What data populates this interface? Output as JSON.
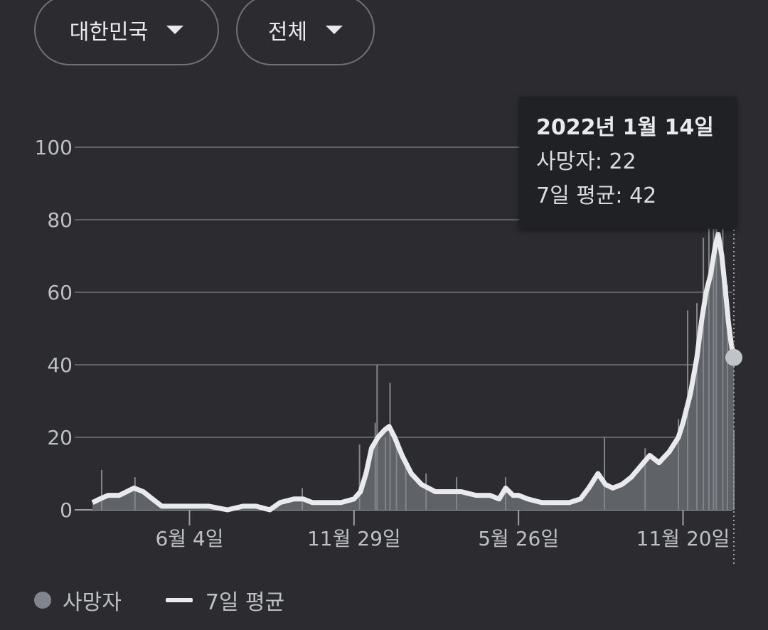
{
  "filters": {
    "region": "대한민국",
    "scope": "전체"
  },
  "tooltip": {
    "date": "2022년 1월 14일",
    "deaths_label": "사망자: 22",
    "avg_label": "7일 평균: 42"
  },
  "legend": {
    "deaths": "사망자",
    "average": "7일 평균"
  },
  "colors": {
    "background": "#2c2c30",
    "bars": "#80868b",
    "area": "#5f6368",
    "average_line": "#e8eaed",
    "grid": "#5f6368"
  },
  "chart_data": {
    "type": "area",
    "y_ticks": [
      0,
      20,
      40,
      60,
      80,
      100
    ],
    "ylim": [
      0,
      100
    ],
    "x_tick_labels": [
      "6월 4일",
      "11월 29일",
      "5월 26일",
      "11월 20일"
    ],
    "x_tick_dates": [
      "2020-06-04",
      "2020-11-29",
      "2021-05-26",
      "2021-11-20"
    ],
    "x_range": [
      "2020-02-20",
      "2022-01-14"
    ],
    "series": [
      {
        "name": "7일 평균",
        "points": [
          [
            "2020-02-20",
            2
          ],
          [
            "2020-02-28",
            3
          ],
          [
            "2020-03-08",
            4
          ],
          [
            "2020-03-20",
            4
          ],
          [
            "2020-03-28",
            5
          ],
          [
            "2020-04-05",
            6
          ],
          [
            "2020-04-15",
            5
          ],
          [
            "2020-04-25",
            3
          ],
          [
            "2020-05-05",
            1
          ],
          [
            "2020-05-20",
            1
          ],
          [
            "2020-06-04",
            1
          ],
          [
            "2020-06-25",
            1
          ],
          [
            "2020-07-15",
            0
          ],
          [
            "2020-08-01",
            1
          ],
          [
            "2020-08-15",
            1
          ],
          [
            "2020-08-30",
            0
          ],
          [
            "2020-09-10",
            2
          ],
          [
            "2020-09-25",
            3
          ],
          [
            "2020-10-05",
            3
          ],
          [
            "2020-10-15",
            2
          ],
          [
            "2020-10-30",
            2
          ],
          [
            "2020-11-15",
            2
          ],
          [
            "2020-11-29",
            3
          ],
          [
            "2020-12-06",
            5
          ],
          [
            "2020-12-12",
            10
          ],
          [
            "2020-12-18",
            17
          ],
          [
            "2020-12-25",
            20
          ],
          [
            "2021-01-01",
            22
          ],
          [
            "2021-01-06",
            23
          ],
          [
            "2021-01-12",
            20
          ],
          [
            "2021-01-20",
            15
          ],
          [
            "2021-01-30",
            10
          ],
          [
            "2021-02-10",
            7
          ],
          [
            "2021-02-25",
            5
          ],
          [
            "2021-03-10",
            5
          ],
          [
            "2021-03-25",
            5
          ],
          [
            "2021-04-10",
            4
          ],
          [
            "2021-04-25",
            4
          ],
          [
            "2021-05-05",
            3
          ],
          [
            "2021-05-12",
            6
          ],
          [
            "2021-05-20",
            4
          ],
          [
            "2021-05-26",
            4
          ],
          [
            "2021-06-05",
            3
          ],
          [
            "2021-06-20",
            2
          ],
          [
            "2021-07-05",
            2
          ],
          [
            "2021-07-20",
            2
          ],
          [
            "2021-08-01",
            3
          ],
          [
            "2021-08-10",
            6
          ],
          [
            "2021-08-20",
            10
          ],
          [
            "2021-08-28",
            7
          ],
          [
            "2021-09-05",
            6
          ],
          [
            "2021-09-15",
            7
          ],
          [
            "2021-09-25",
            9
          ],
          [
            "2021-10-05",
            12
          ],
          [
            "2021-10-15",
            15
          ],
          [
            "2021-10-25",
            13
          ],
          [
            "2021-11-05",
            16
          ],
          [
            "2021-11-15",
            20
          ],
          [
            "2021-11-20",
            24
          ],
          [
            "2021-11-28",
            32
          ],
          [
            "2021-12-05",
            42
          ],
          [
            "2021-12-10",
            52
          ],
          [
            "2021-12-15",
            60
          ],
          [
            "2021-12-20",
            65
          ],
          [
            "2021-12-25",
            73
          ],
          [
            "2021-12-28",
            76
          ],
          [
            "2022-01-01",
            70
          ],
          [
            "2022-01-05",
            60
          ],
          [
            "2022-01-08",
            52
          ],
          [
            "2022-01-11",
            46
          ],
          [
            "2022-01-14",
            42
          ]
        ]
      },
      {
        "name": "사망자",
        "points": [
          [
            "2020-03-01",
            11
          ],
          [
            "2020-04-06",
            9
          ],
          [
            "2020-10-04",
            6
          ],
          [
            "2020-12-05",
            18
          ],
          [
            "2020-12-22",
            24
          ],
          [
            "2020-12-24",
            40
          ],
          [
            "2021-01-02",
            20
          ],
          [
            "2021-01-07",
            35
          ],
          [
            "2021-01-14",
            18
          ],
          [
            "2021-01-24",
            12
          ],
          [
            "2021-02-15",
            10
          ],
          [
            "2021-03-20",
            9
          ],
          [
            "2021-05-12",
            9
          ],
          [
            "2021-08-27",
            20
          ],
          [
            "2021-10-10",
            17
          ],
          [
            "2021-11-15",
            25
          ],
          [
            "2021-11-25",
            55
          ],
          [
            "2021-12-05",
            57
          ],
          [
            "2021-12-12",
            75
          ],
          [
            "2021-12-18",
            100
          ],
          [
            "2021-12-23",
            109
          ],
          [
            "2021-12-26",
            108
          ],
          [
            "2022-01-02",
            90
          ],
          [
            "2022-01-07",
            62
          ],
          [
            "2022-01-14",
            22
          ]
        ]
      }
    ]
  }
}
